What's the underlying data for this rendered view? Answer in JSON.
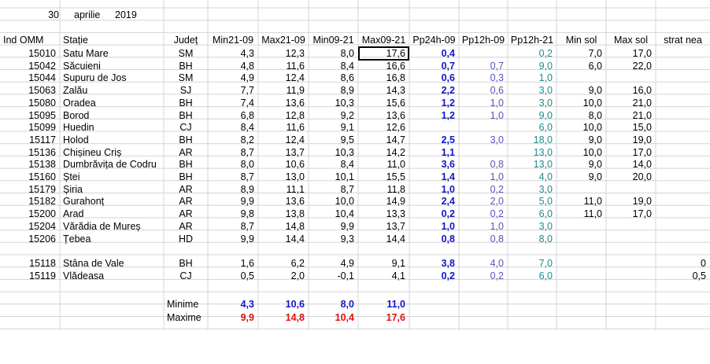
{
  "date": {
    "day": "30",
    "month": "aprilie",
    "year": "2019"
  },
  "headers": [
    "Ind OMM",
    "Stație",
    "Județ",
    "Min21-09",
    "Max21-09",
    "Min09-21",
    "Max09-21",
    "Pp24h-09",
    "Pp12h-09",
    "Pp12h-21",
    "Min sol",
    "Max sol",
    "strat nea"
  ],
  "rows": [
    [
      "15010",
      "Satu Mare",
      "SM",
      "4,3",
      "12,3",
      "8,0",
      "17,6",
      "0,4",
      "",
      "0,2",
      "7,0",
      "17,0",
      ""
    ],
    [
      "15042",
      "Săcuieni",
      "BH",
      "4,8",
      "11,6",
      "8,4",
      "16,6",
      "0,7",
      "0,7",
      "9,0",
      "6,0",
      "22,0",
      ""
    ],
    [
      "15044",
      "Supuru de Jos",
      "SM",
      "4,9",
      "12,4",
      "8,6",
      "16,8",
      "0,6",
      "0,3",
      "1,0",
      "",
      "",
      ""
    ],
    [
      "15063",
      "Zalău",
      "SJ",
      "7,7",
      "11,9",
      "8,9",
      "14,3",
      "2,2",
      "0,6",
      "3,0",
      "9,0",
      "16,0",
      ""
    ],
    [
      "15080",
      "Oradea",
      "BH",
      "7,4",
      "13,6",
      "10,3",
      "15,6",
      "1,2",
      "1,0",
      "3,0",
      "10,0",
      "21,0",
      ""
    ],
    [
      "15095",
      "Borod",
      "BH",
      "6,8",
      "12,8",
      "9,2",
      "13,6",
      "1,2",
      "1,0",
      "9,0",
      "8,0",
      "21,0",
      ""
    ],
    [
      "15099",
      "Huedin",
      "CJ",
      "8,4",
      "11,6",
      "9,1",
      "12,6",
      "",
      "",
      "6,0",
      "10,0",
      "15,0",
      ""
    ],
    [
      "15117",
      "Holod",
      "BH",
      "8,2",
      "12,4",
      "9,5",
      "14,7",
      "2,5",
      "3,0",
      "18,0",
      "9,0",
      "19,0",
      ""
    ],
    [
      "15136",
      "Chișineu    Criș",
      "AR",
      "8,7",
      "13,7",
      "10,3",
      "14,2",
      "1,1",
      "",
      "13,0",
      "10,0",
      "17,0",
      ""
    ],
    [
      "15138",
      "Dumbrăvița de Codru",
      "BH",
      "8,0",
      "10,6",
      "8,4",
      "11,0",
      "3,6",
      "0,8",
      "13,0",
      "9,0",
      "14,0",
      ""
    ],
    [
      "15160",
      "Ștei",
      "BH",
      "8,7",
      "13,0",
      "10,1",
      "15,5",
      "1,4",
      "1,0",
      "4,0",
      "9,0",
      "20,0",
      ""
    ],
    [
      "15179",
      "Șiria",
      "AR",
      "8,9",
      "11,1",
      "8,7",
      "11,8",
      "1,0",
      "0,2",
      "3,0",
      "",
      "",
      ""
    ],
    [
      "15182",
      "Gurahonț",
      "AR",
      "9,9",
      "13,6",
      "10,0",
      "14,9",
      "2,4",
      "2,0",
      "5,0",
      "11,0",
      "19,0",
      ""
    ],
    [
      "15200",
      "Arad",
      "AR",
      "9,8",
      "13,8",
      "10,4",
      "13,3",
      "0,2",
      "0,2",
      "6,0",
      "11,0",
      "17,0",
      ""
    ],
    [
      "15204",
      "Vărădia de Mureș",
      "AR",
      "8,7",
      "14,8",
      "9,9",
      "13,7",
      "1,0",
      "1,0",
      "3,0",
      "",
      "",
      ""
    ],
    [
      "15206",
      "Țebea",
      "HD",
      "9,9",
      "14,4",
      "9,3",
      "14,4",
      "0,8",
      "0,8",
      "8,0",
      "",
      "",
      ""
    ],
    [
      "",
      "",
      "",
      "",
      "",
      "",
      "",
      "",
      "",
      "",
      "",
      "",
      ""
    ],
    [
      "15118",
      "Stâna de Vale",
      "BH",
      "1,6",
      "6,2",
      "4,9",
      "9,1",
      "3,8",
      "4,0",
      "7,0",
      "",
      "",
      "0"
    ],
    [
      "15119",
      "Vlădeasa",
      "CJ",
      "0,5",
      "2,0",
      "-0,1",
      "4,1",
      "0,2",
      "0,2",
      "6,0",
      "",
      "",
      "0,5"
    ]
  ],
  "summary": {
    "min": {
      "label": "Minime",
      "values": [
        "4,3",
        "10,6",
        "8,0",
        "11,0"
      ]
    },
    "max": {
      "label": "Maxime",
      "values": [
        "9,9",
        "14,8",
        "10,4",
        "17,6"
      ]
    }
  },
  "colors": {
    "blue": "#1414c8",
    "purple": "#5555c0",
    "teal": "#1e8c8c",
    "red": "#e01010",
    "gridline": "#d4d4d4"
  }
}
